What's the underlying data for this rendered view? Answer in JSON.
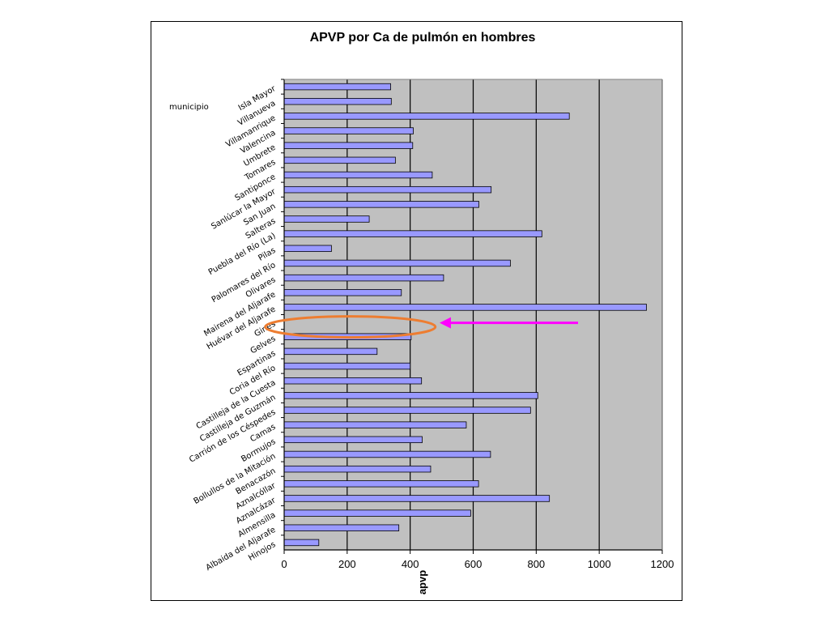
{
  "chart_data": {
    "type": "bar",
    "orientation": "horizontal",
    "title": "APVP por Ca de pulmón en hombres",
    "xlabel": "apvp",
    "ylabel": "municipio",
    "xlim": [
      0,
      1200
    ],
    "xticks": [
      0,
      200,
      400,
      600,
      800,
      1000,
      1200
    ],
    "grid": "vertical",
    "categories": [
      "Isla Mayor",
      "Villanueva",
      "Villamanrique",
      "Valencina",
      "Umbrete",
      "Tomares",
      "Santiponce",
      "Sanlúcar la Mayor",
      "San Juan",
      "Salteras",
      "Puebla del Río (La)",
      "Pilas",
      "Palomares del Río",
      "Olivares",
      "Mairena del Aljarafe",
      "Huévar del Aljarafe",
      "Gines",
      "Gelves",
      "Espartinas",
      "Coria del Río",
      "Castilleja de la Cuesta",
      "Castilleja de Guzmán",
      "Carrión de los Céspedes",
      "Camas",
      "Bormujos",
      "Bollullos de la Mitación",
      "Benacazón",
      "Aznalcóllar",
      "Aznalcázar",
      "Almensilla",
      "Albaida del Aljarafe",
      "Hinojos"
    ],
    "values": [
      338,
      340,
      905,
      410,
      408,
      353,
      470,
      657,
      618,
      270,
      818,
      150,
      718,
      506,
      372,
      1150,
      0,
      403,
      295,
      400,
      436,
      805,
      782,
      578,
      438,
      655,
      465,
      617,
      842,
      592,
      364,
      110
    ],
    "bar_color": "#9999ff",
    "plot_background": "#c0c0c0",
    "highlight": {
      "category": "Gines",
      "ellipse_color": "#ed7d31",
      "arrow_color": "#ff00ff"
    }
  }
}
